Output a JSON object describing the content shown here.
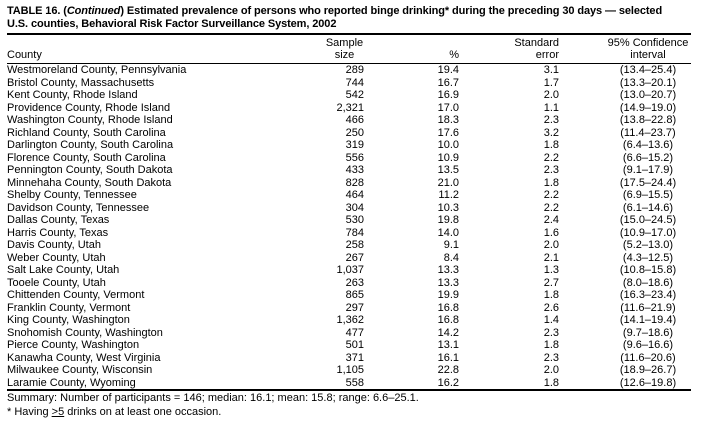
{
  "title": {
    "line1_pre": "TABLE 16. (",
    "line1_italic": "Continued",
    "line1_post": ") Estimated prevalence of persons who reported binge drinking* during the preceding 30 days — selected",
    "line2": "U.S. counties, Behavioral Risk Factor Surveillance System, 2002"
  },
  "table": {
    "headers": {
      "county": "County",
      "sample_line1": "Sample",
      "sample_line2": "size",
      "pct": "%",
      "se_line1": "Standard",
      "se_line2": "error",
      "ci_line1": "95% Confidence",
      "ci_line2": "interval"
    },
    "rows": [
      {
        "county": "Westmoreland County, Pennsylvania",
        "n": "289",
        "pct": "19.4",
        "se": "3.1",
        "ci": "(13.4–25.4)"
      },
      {
        "county": "Bristol County, Massachusetts",
        "n": "744",
        "pct": "16.7",
        "se": "1.7",
        "ci": "(13.3–20.1)"
      },
      {
        "county": "Kent County, Rhode Island",
        "n": "542",
        "pct": "16.9",
        "se": "2.0",
        "ci": "(13.0–20.7)"
      },
      {
        "county": "Providence County, Rhode Island",
        "n": "2,321",
        "pct": "17.0",
        "se": "1.1",
        "ci": "(14.9–19.0)"
      },
      {
        "county": "Washington County, Rhode Island",
        "n": "466",
        "pct": "18.3",
        "se": "2.3",
        "ci": "(13.8–22.8)"
      },
      {
        "county": "Richland County, South Carolina",
        "n": "250",
        "pct": "17.6",
        "se": "3.2",
        "ci": "(11.4–23.7)"
      },
      {
        "county": "Darlington County, South Carolina",
        "n": "319",
        "pct": "10.0",
        "se": "1.8",
        "ci": "(6.4–13.6)"
      },
      {
        "county": "Florence County, South Carolina",
        "n": "556",
        "pct": "10.9",
        "se": "2.2",
        "ci": "(6.6–15.2)"
      },
      {
        "county": "Pennington County, South Dakota",
        "n": "433",
        "pct": "13.5",
        "se": "2.3",
        "ci": "(9.1–17.9)"
      },
      {
        "county": "Minnehaha County, South Dakota",
        "n": "828",
        "pct": "21.0",
        "se": "1.8",
        "ci": "(17.5–24.4)"
      },
      {
        "county": "Shelby County, Tennessee",
        "n": "464",
        "pct": "11.2",
        "se": "2.2",
        "ci": "(6.9–15.5)"
      },
      {
        "county": "Davidson County, Tennessee",
        "n": "304",
        "pct": "10.3",
        "se": "2.2",
        "ci": "(6.1–14.6)"
      },
      {
        "county": "Dallas County, Texas",
        "n": "530",
        "pct": "19.8",
        "se": "2.4",
        "ci": "(15.0–24.5)"
      },
      {
        "county": "Harris County, Texas",
        "n": "784",
        "pct": "14.0",
        "se": "1.6",
        "ci": "(10.9–17.0)"
      },
      {
        "county": "Davis County, Utah",
        "n": "258",
        "pct": "9.1",
        "se": "2.0",
        "ci": "(5.2–13.0)"
      },
      {
        "county": "Weber County, Utah",
        "n": "267",
        "pct": "8.4",
        "se": "2.1",
        "ci": "(4.3–12.5)"
      },
      {
        "county": "Salt Lake County, Utah",
        "n": "1,037",
        "pct": "13.3",
        "se": "1.3",
        "ci": "(10.8–15.8)"
      },
      {
        "county": "Tooele County, Utah",
        "n": "263",
        "pct": "13.3",
        "se": "2.7",
        "ci": "(8.0–18.6)"
      },
      {
        "county": "Chittenden County, Vermont",
        "n": "865",
        "pct": "19.9",
        "se": "1.8",
        "ci": "(16.3–23.4)"
      },
      {
        "county": "Franklin County, Vermont",
        "n": "297",
        "pct": "16.8",
        "se": "2.6",
        "ci": "(11.6–21.9)"
      },
      {
        "county": "King County, Washington",
        "n": "1,362",
        "pct": "16.8",
        "se": "1.4",
        "ci": "(14.1–19.4)"
      },
      {
        "county": "Snohomish County, Washington",
        "n": "477",
        "pct": "14.2",
        "se": "2.3",
        "ci": "(9.7–18.6)"
      },
      {
        "county": "Pierce County, Washington",
        "n": "501",
        "pct": "13.1",
        "se": "1.8",
        "ci": "(9.6–16.6)"
      },
      {
        "county": "Kanawha County, West Virginia",
        "n": "371",
        "pct": "16.1",
        "se": "2.3",
        "ci": "(11.6–20.6)"
      },
      {
        "county": "Milwaukee County, Wisconsin",
        "n": "1,105",
        "pct": "22.8",
        "se": "2.0",
        "ci": "(18.9–26.7)"
      },
      {
        "county": "Laramie County, Wyoming",
        "n": "558",
        "pct": "16.2",
        "se": "1.8",
        "ci": "(12.6–19.8)"
      }
    ]
  },
  "summary": "Summary: Number of participants = 146; median: 16.1; mean: 15.8; range: 6.6–25.1.",
  "footnote": {
    "pre": "* Having ",
    "geq": ">5",
    "post": " drinks on at least one occasion."
  },
  "colors": {
    "text": "#000000",
    "background": "#ffffff",
    "rule": "#000000"
  }
}
